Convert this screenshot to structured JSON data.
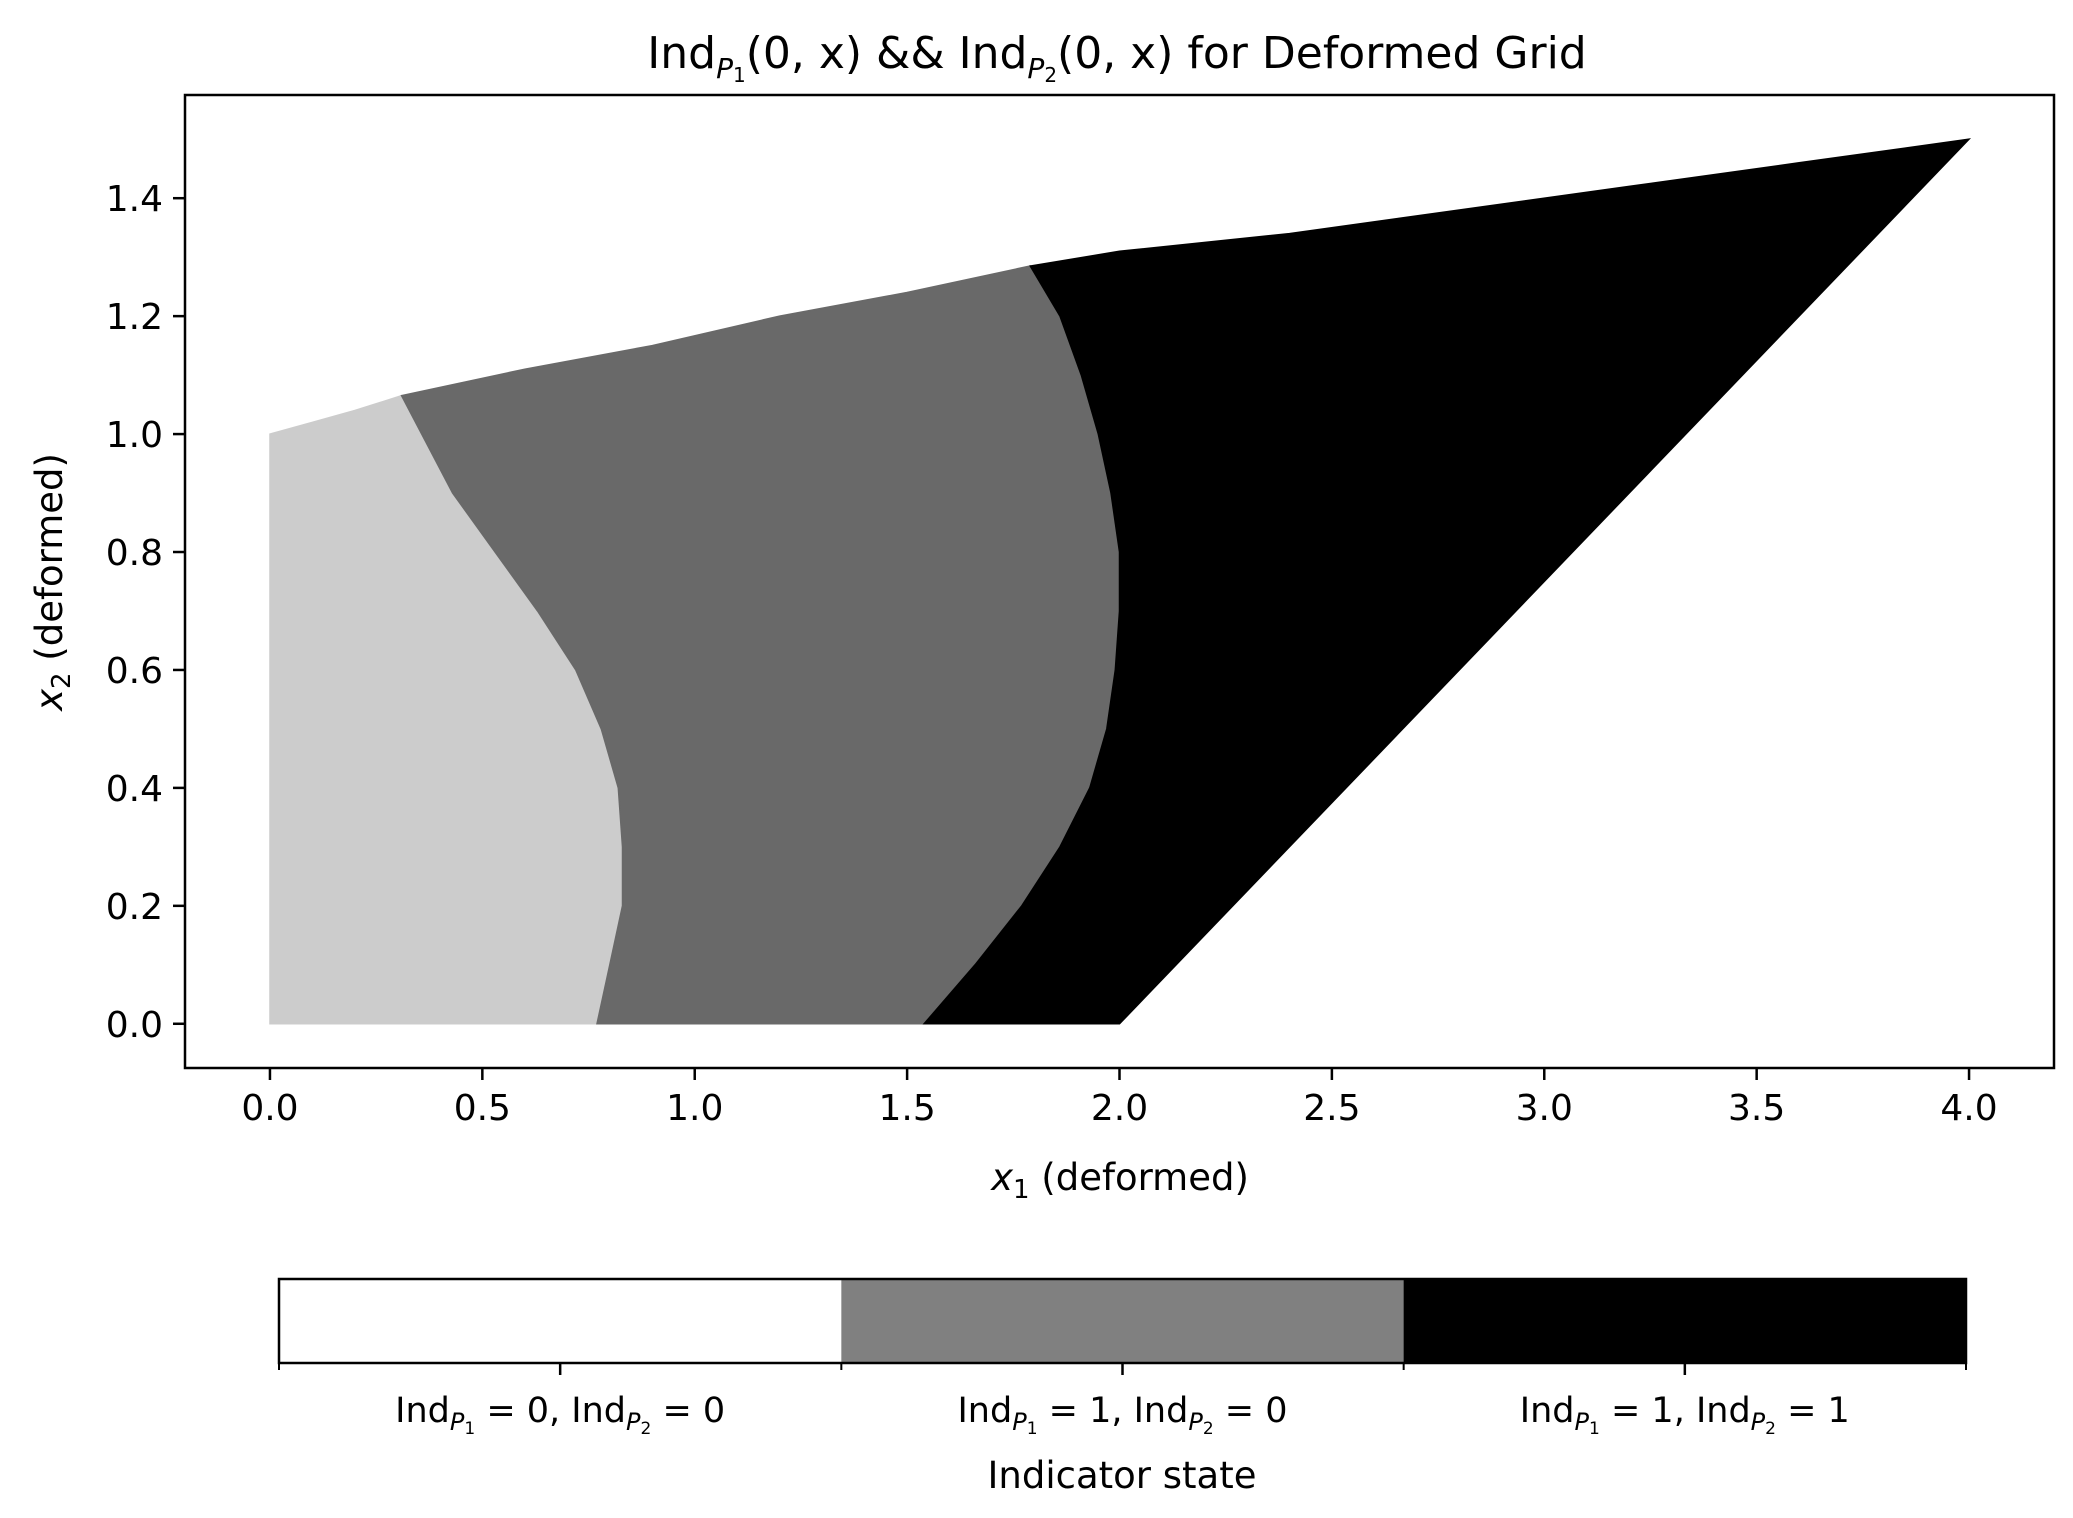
{
  "chart_data": {
    "type": "heatmap",
    "title": {
      "prefix": "Ind",
      "sub1": "P",
      "sub1_index": "1",
      "args1": "(0, x)",
      "middle": " && Ind",
      "sub2": "P",
      "sub2_index": "2",
      "args2": "(0, x)",
      "suffix": " for Deformed Grid"
    },
    "xlabel": {
      "var": "x",
      "index": "1",
      "text": " (deformed)"
    },
    "ylabel": {
      "var": "x",
      "index": "2",
      "text": " (deformed)"
    },
    "xlim": [
      -0.2,
      4.2
    ],
    "ylim": [
      -0.075,
      1.575
    ],
    "x_ticks": [
      "0.0",
      "0.5",
      "1.0",
      "1.5",
      "2.0",
      "2.5",
      "3.0",
      "3.5",
      "4.0"
    ],
    "y_ticks": [
      "0.0",
      "0.2",
      "0.4",
      "0.6",
      "0.8",
      "1.0",
      "1.2",
      "1.4"
    ],
    "grid": false,
    "regions": [
      {
        "state": "Ind_P1 = 0, Ind_P2 = 0",
        "color": "#cccccc",
        "outline": [
          [
            0.0,
            0.0
          ],
          [
            0.77,
            0.0
          ],
          [
            0.8,
            0.1
          ],
          [
            0.83,
            0.2
          ],
          [
            0.83,
            0.3
          ],
          [
            0.82,
            0.4
          ],
          [
            0.78,
            0.5
          ],
          [
            0.72,
            0.6
          ],
          [
            0.63,
            0.7
          ],
          [
            0.53,
            0.8
          ],
          [
            0.43,
            0.9
          ],
          [
            0.31,
            1.065
          ],
          [
            0.2,
            1.04
          ],
          [
            0.1,
            1.02
          ],
          [
            0.0,
            1.0
          ]
        ]
      },
      {
        "state": "Ind_P1 = 1, Ind_P2 = 0",
        "color": "#696969",
        "outline": [
          [
            0.77,
            0.0
          ],
          [
            1.54,
            0.0
          ],
          [
            1.66,
            0.1
          ],
          [
            1.77,
            0.2
          ],
          [
            1.86,
            0.3
          ],
          [
            1.93,
            0.4
          ],
          [
            1.97,
            0.5
          ],
          [
            1.99,
            0.6
          ],
          [
            2.0,
            0.7
          ],
          [
            2.0,
            0.8
          ],
          [
            1.98,
            0.9
          ],
          [
            1.95,
            1.0
          ],
          [
            1.91,
            1.1
          ],
          [
            1.86,
            1.2
          ],
          [
            1.79,
            1.285
          ],
          [
            1.5,
            1.24
          ],
          [
            1.2,
            1.2
          ],
          [
            0.9,
            1.15
          ],
          [
            0.6,
            1.11
          ],
          [
            0.31,
            1.065
          ],
          [
            0.43,
            0.9
          ],
          [
            0.53,
            0.8
          ],
          [
            0.63,
            0.7
          ],
          [
            0.72,
            0.6
          ],
          [
            0.78,
            0.5
          ],
          [
            0.82,
            0.4
          ],
          [
            0.83,
            0.3
          ],
          [
            0.83,
            0.2
          ],
          [
            0.8,
            0.1
          ]
        ]
      },
      {
        "state": "Ind_P1 = 1, Ind_P2 = 1",
        "color": "#000000",
        "outline": [
          [
            1.54,
            0.0
          ],
          [
            2.0,
            0.0
          ],
          [
            4.0,
            1.5
          ],
          [
            3.6,
            1.46
          ],
          [
            3.2,
            1.42
          ],
          [
            2.8,
            1.38
          ],
          [
            2.4,
            1.34
          ],
          [
            2.0,
            1.31
          ],
          [
            1.79,
            1.285
          ],
          [
            1.86,
            1.2
          ],
          [
            1.91,
            1.1
          ],
          [
            1.95,
            1.0
          ],
          [
            1.98,
            0.9
          ],
          [
            2.0,
            0.8
          ],
          [
            2.0,
            0.7
          ],
          [
            1.99,
            0.6
          ],
          [
            1.97,
            0.5
          ],
          [
            1.93,
            0.4
          ],
          [
            1.86,
            0.3
          ],
          [
            1.77,
            0.2
          ],
          [
            1.66,
            0.1
          ]
        ]
      }
    ],
    "colorbar": {
      "label": "Indicator state",
      "orientation": "horizontal",
      "placement": "bottom",
      "ticks": [
        {
          "color": "#ffffff",
          "left": "Ind",
          "sub": "P",
          "idx": "1",
          "eq1": " = 0, Ind",
          "sub2": "P",
          "idx2": "2",
          "eq2": " = 0"
        },
        {
          "color": "#808080",
          "left": "Ind",
          "sub": "P",
          "idx": "1",
          "eq1": " = 1, Ind",
          "sub2": "P",
          "idx2": "2",
          "eq2": " = 0"
        },
        {
          "color": "#000000",
          "left": "Ind",
          "sub": "P",
          "idx": "1",
          "eq1": " = 1, Ind",
          "sub2": "P",
          "idx2": "2",
          "eq2": " = 1"
        }
      ]
    }
  }
}
